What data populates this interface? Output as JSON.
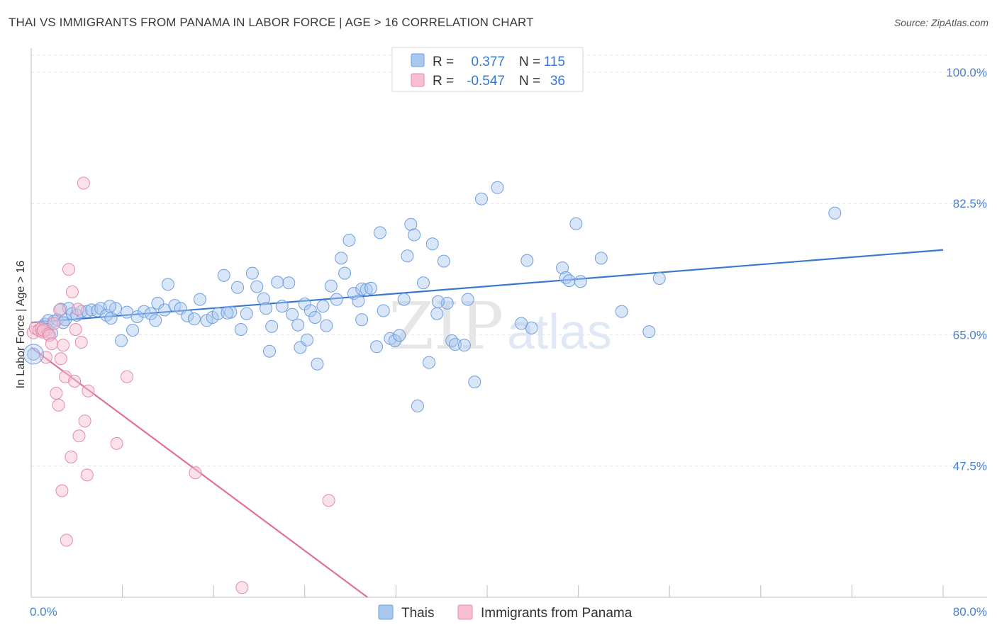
{
  "title": "THAI VS IMMIGRANTS FROM PANAMA IN LABOR FORCE | AGE > 16 CORRELATION CHART",
  "source": "Source: ZipAtlas.com",
  "watermark": {
    "zip": "ZIP",
    "atlas": "atlas"
  },
  "legend_box": {
    "rows": [
      {
        "r_label": "R =",
        "r_value": "0.377",
        "n_label": "N =",
        "n_value": "115",
        "color": "#a9c8f0",
        "stroke": "#6f9ee0"
      },
      {
        "r_label": "R =",
        "r_value": "-0.547",
        "n_label": "N =",
        "n_value": "36",
        "color": "#f7bfd0",
        "stroke": "#e58aa8"
      }
    ]
  },
  "bottom_legend": [
    {
      "label": "Thais",
      "color": "#a9c8f0",
      "stroke": "#6f9ee0"
    },
    {
      "label": "Immigrants from Panama",
      "color": "#f7bfd0",
      "stroke": "#e58aa8"
    }
  ],
  "chart_data": {
    "type": "scatter",
    "ylabel": "In Labor Force | Age > 16",
    "xlim": [
      0,
      80
    ],
    "ylim": [
      30,
      103
    ],
    "x_tick_labels": [
      {
        "value": 0,
        "label": "0.0%"
      },
      {
        "value": 80,
        "label": "80.0%"
      }
    ],
    "y_tick_labels": [
      {
        "value": 100,
        "label": "100.0%"
      },
      {
        "value": 82.5,
        "label": "82.5%"
      },
      {
        "value": 65,
        "label": "65.0%"
      },
      {
        "value": 47.5,
        "label": "47.5%"
      }
    ],
    "x_minor_ticks": [
      0,
      8,
      16,
      24,
      32,
      40,
      48,
      56,
      64,
      72,
      80
    ],
    "grid": true,
    "series": [
      {
        "name": "Thais",
        "color": "#a9c8f0",
        "stroke": "#6f9ee0",
        "trend": {
          "x": [
            0,
            80
          ],
          "y": [
            66.6,
            76.3
          ],
          "color": "#3a78d0"
        },
        "points": [
          [
            0.2,
            62.4
          ],
          [
            1.0,
            66.1
          ],
          [
            1.2,
            66.4
          ],
          [
            1.5,
            66.9
          ],
          [
            1.8,
            65.2
          ],
          [
            2.0,
            66.8
          ],
          [
            2.3,
            67.0
          ],
          [
            2.6,
            68.4
          ],
          [
            3.0,
            67.0
          ],
          [
            3.3,
            68.5
          ],
          [
            3.6,
            67.8
          ],
          [
            4.0,
            67.6
          ],
          [
            4.4,
            68.1
          ],
          [
            4.9,
            68.1
          ],
          [
            5.3,
            68.3
          ],
          [
            5.8,
            68.2
          ],
          [
            6.1,
            68.5
          ],
          [
            6.6,
            67.6
          ],
          [
            7.0,
            67.2
          ],
          [
            7.4,
            68.5
          ],
          [
            7.9,
            64.2
          ],
          [
            8.4,
            68.0
          ],
          [
            8.9,
            65.6
          ],
          [
            9.3,
            67.4
          ],
          [
            9.9,
            68.1
          ],
          [
            10.5,
            67.8
          ],
          [
            11.1,
            69.2
          ],
          [
            11.7,
            68.3
          ],
          [
            12.0,
            71.7
          ],
          [
            12.6,
            68.9
          ],
          [
            13.1,
            68.5
          ],
          [
            13.7,
            67.5
          ],
          [
            14.3,
            67.1
          ],
          [
            14.8,
            69.7
          ],
          [
            15.4,
            66.9
          ],
          [
            15.9,
            67.3
          ],
          [
            16.4,
            67.8
          ],
          [
            16.9,
            72.9
          ],
          [
            17.5,
            68.0
          ],
          [
            18.1,
            71.3
          ],
          [
            18.4,
            65.7
          ],
          [
            18.9,
            67.8
          ],
          [
            19.4,
            73.2
          ],
          [
            19.8,
            71.4
          ],
          [
            20.4,
            69.8
          ],
          [
            20.6,
            68.5
          ],
          [
            20.9,
            62.8
          ],
          [
            21.1,
            66.1
          ],
          [
            21.6,
            72.0
          ],
          [
            22.0,
            68.8
          ],
          [
            22.6,
            71.9
          ],
          [
            22.9,
            67.7
          ],
          [
            23.4,
            66.3
          ],
          [
            23.6,
            63.3
          ],
          [
            24.0,
            69.1
          ],
          [
            24.5,
            68.2
          ],
          [
            24.9,
            67.3
          ],
          [
            25.1,
            61.1
          ],
          [
            25.6,
            68.8
          ],
          [
            25.9,
            66.2
          ],
          [
            26.3,
            71.5
          ],
          [
            26.8,
            69.7
          ],
          [
            27.2,
            75.2
          ],
          [
            27.5,
            73.2
          ],
          [
            27.9,
            77.6
          ],
          [
            28.3,
            70.5
          ],
          [
            28.7,
            69.5
          ],
          [
            29.0,
            71.1
          ],
          [
            29.4,
            71.0
          ],
          [
            29.8,
            71.2
          ],
          [
            30.3,
            63.4
          ],
          [
            30.6,
            78.6
          ],
          [
            30.9,
            68.2
          ],
          [
            31.5,
            64.5
          ],
          [
            31.9,
            64.2
          ],
          [
            32.3,
            64.9
          ],
          [
            32.7,
            69.7
          ],
          [
            33.0,
            75.5
          ],
          [
            33.3,
            79.7
          ],
          [
            33.6,
            78.3
          ],
          [
            33.9,
            55.5
          ],
          [
            34.4,
            71.9
          ],
          [
            34.9,
            61.3
          ],
          [
            35.2,
            77.1
          ],
          [
            35.6,
            67.8
          ],
          [
            36.2,
            74.8
          ],
          [
            36.5,
            69.2
          ],
          [
            36.9,
            64.2
          ],
          [
            37.2,
            63.7
          ],
          [
            38.3,
            69.7
          ],
          [
            38.9,
            58.7
          ],
          [
            39.5,
            83.1
          ],
          [
            40.9,
            84.6
          ],
          [
            43.5,
            74.9
          ],
          [
            43.9,
            65.9
          ],
          [
            46.6,
            73.9
          ],
          [
            46.9,
            72.6
          ],
          [
            47.2,
            72.2
          ],
          [
            47.8,
            79.8
          ],
          [
            50.0,
            75.2
          ],
          [
            51.8,
            68.1
          ],
          [
            54.2,
            65.4
          ],
          [
            55.1,
            72.5
          ],
          [
            70.5,
            81.2
          ],
          [
            1.4,
            65.7
          ],
          [
            2.8,
            66.6
          ],
          [
            6.9,
            68.8
          ],
          [
            10.9,
            66.9
          ],
          [
            17.2,
            67.9
          ],
          [
            24.2,
            64.3
          ],
          [
            29.0,
            67.0
          ],
          [
            35.7,
            69.4
          ],
          [
            43.0,
            66.5
          ],
          [
            48.2,
            72.1
          ],
          [
            38.0,
            63.6
          ]
        ]
      },
      {
        "name": "Immigrants from Panama",
        "color": "#f7bfd0",
        "stroke": "#e58aa8",
        "trend": {
          "x": [
            0,
            29.5
          ],
          "y": [
            63.3,
            30
          ],
          "color": "#e0709a"
        },
        "points": [
          [
            0.2,
            65.3
          ],
          [
            0.4,
            65.9
          ],
          [
            0.7,
            65.6
          ],
          [
            0.9,
            65.8
          ],
          [
            1.0,
            65.4
          ],
          [
            1.1,
            65.6
          ],
          [
            1.3,
            62.0
          ],
          [
            1.5,
            65.1
          ],
          [
            1.6,
            64.9
          ],
          [
            1.8,
            63.8
          ],
          [
            2.0,
            66.5
          ],
          [
            2.2,
            57.2
          ],
          [
            2.4,
            55.6
          ],
          [
            2.6,
            61.8
          ],
          [
            2.8,
            63.6
          ],
          [
            3.0,
            59.4
          ],
          [
            3.3,
            73.7
          ],
          [
            3.5,
            48.7
          ],
          [
            3.6,
            70.7
          ],
          [
            3.8,
            58.8
          ],
          [
            3.9,
            65.7
          ],
          [
            4.2,
            51.5
          ],
          [
            4.4,
            64.0
          ],
          [
            4.6,
            85.2
          ],
          [
            4.7,
            53.5
          ],
          [
            4.9,
            46.3
          ],
          [
            5.0,
            57.5
          ],
          [
            7.5,
            50.5
          ],
          [
            8.4,
            59.4
          ],
          [
            14.4,
            46.6
          ],
          [
            18.5,
            31.3
          ],
          [
            26.1,
            42.9
          ],
          [
            2.5,
            68.3
          ],
          [
            4.1,
            68.4
          ],
          [
            2.7,
            44.2
          ],
          [
            3.1,
            37.6
          ]
        ]
      }
    ]
  }
}
